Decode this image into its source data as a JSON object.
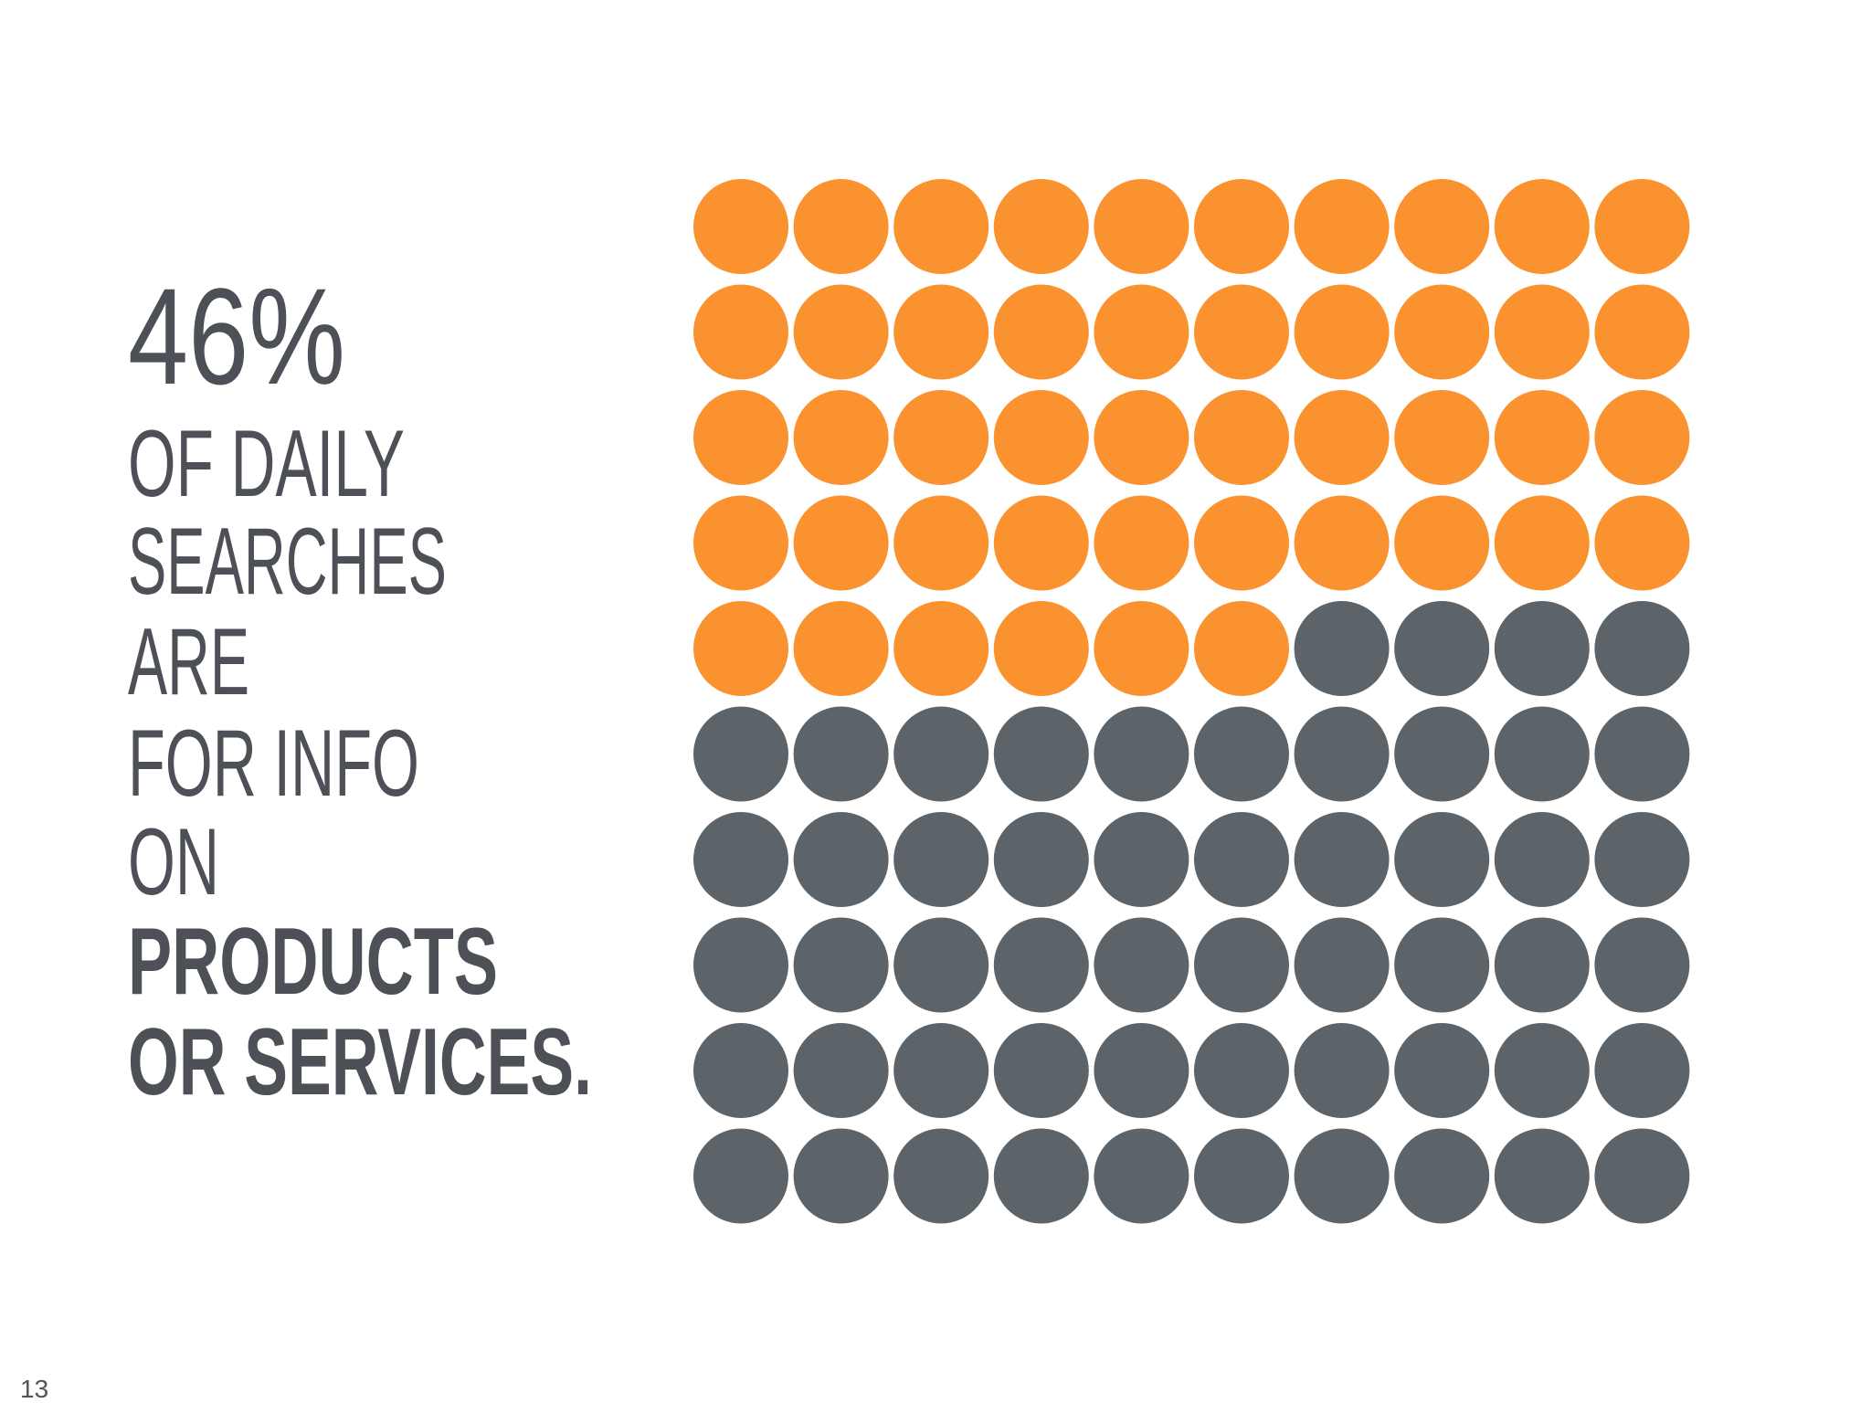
{
  "chart_data": {
    "type": "waffle",
    "values": [
      46
    ],
    "value_labels": [
      "46%"
    ],
    "color": "#fb9230",
    "rest_color": "#5c6369",
    "text_lines": [
      "OF DAILY",
      "SEARCHES",
      "ARE",
      "FOR INFO",
      "ON"
    ],
    "bold_lines": [
      "PRODUCTS",
      "OR SERVICES."
    ]
  },
  "page_number": "13"
}
